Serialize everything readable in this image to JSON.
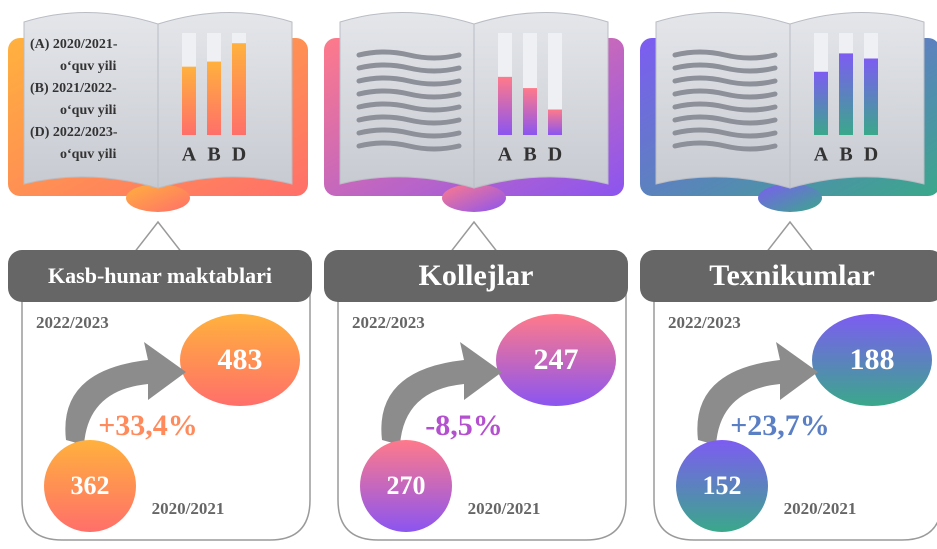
{
  "legend": [
    "(A) 2020/2021-",
    "o‘quv yili",
    "(B) 2021/2022-",
    "o‘quv yili",
    "(D) 2022/2023-",
    "o‘quv yili"
  ],
  "bar_labels": [
    "A",
    "B",
    "D"
  ],
  "bar_max": 100,
  "panels": [
    {
      "title": "Kasb-hunar maktablari",
      "bars": [
        67,
        72,
        90
      ],
      "year_top": "2022/2023",
      "value_top": 483,
      "change": "+33,4%",
      "value_bottom": 362,
      "year_bottom": "2020/2021",
      "colors": [
        "#ffb13d",
        "#ff6f6a"
      ],
      "change_color": "#ff8a5c"
    },
    {
      "title": "Kollejlar",
      "bars": [
        57,
        46,
        25
      ],
      "year_top": "2022/2023",
      "value_top": 247,
      "change": "-8,5%",
      "value_bottom": 270,
      "year_bottom": "2020/2021",
      "colors": [
        "#ff7a8a",
        "#8b55f0"
      ],
      "change_color": "#b44fcf"
    },
    {
      "title": "Texnikumlar",
      "bars": [
        62,
        80,
        75
      ],
      "year_top": "2022/2023",
      "value_top": 188,
      "change": "+23,7%",
      "value_bottom": 152,
      "year_bottom": "2020/2021",
      "colors": [
        "#7d5cf2",
        "#3aa88a"
      ],
      "change_color": "#5b7fc4"
    }
  ]
}
